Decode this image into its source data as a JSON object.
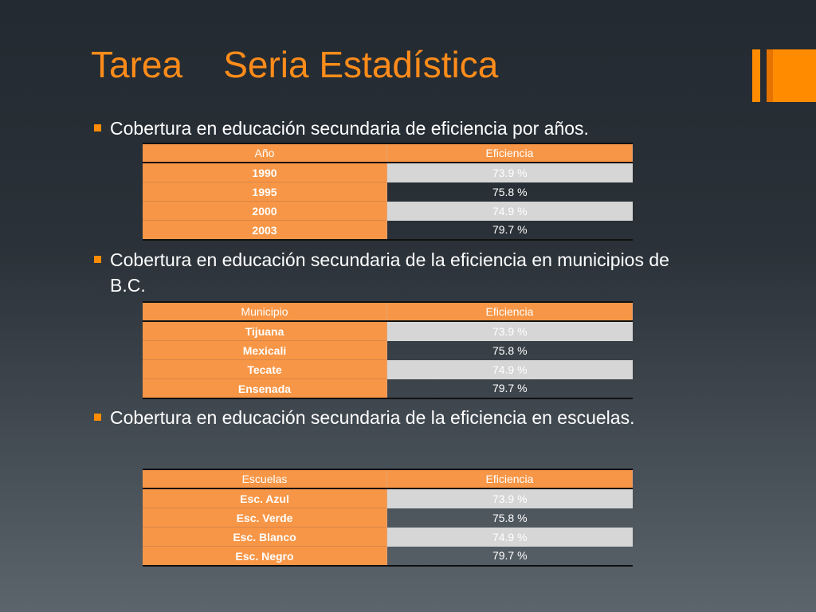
{
  "slide": {
    "title": "Tarea    Seria Estadística",
    "accent": "#ff8c00"
  },
  "sections": [
    {
      "bullet": "Cobertura en educación secundaria de eficiencia por años.",
      "headers": [
        "Año",
        "Eficiencia"
      ],
      "rows": [
        [
          "1990",
          "73.9 %"
        ],
        [
          "1995",
          "75.8 %"
        ],
        [
          "2000",
          "74.9 %"
        ],
        [
          "2003",
          "79.7 %"
        ]
      ]
    },
    {
      "bullet": "Cobertura en educación secundaria de la eficiencia en municipios de B.C.",
      "headers": [
        "Municipio",
        "Eficiencia"
      ],
      "rows": [
        [
          "Tijuana",
          "73.9 %"
        ],
        [
          "Mexicali",
          "75.8 %"
        ],
        [
          "Tecate",
          "74.9 %"
        ],
        [
          "Ensenada",
          "79.7 %"
        ]
      ]
    },
    {
      "bullet": "Cobertura en educación secundaria de la eficiencia en escuelas.",
      "headers": [
        "Escuelas",
        "Eficiencia"
      ],
      "rows": [
        [
          "Esc. Azul",
          "73.9 %"
        ],
        [
          "Esc. Verde",
          "75.8 %"
        ],
        [
          "Esc. Blanco",
          "74.9 %"
        ],
        [
          "Esc. Negro",
          "79.7 %"
        ]
      ]
    }
  ]
}
